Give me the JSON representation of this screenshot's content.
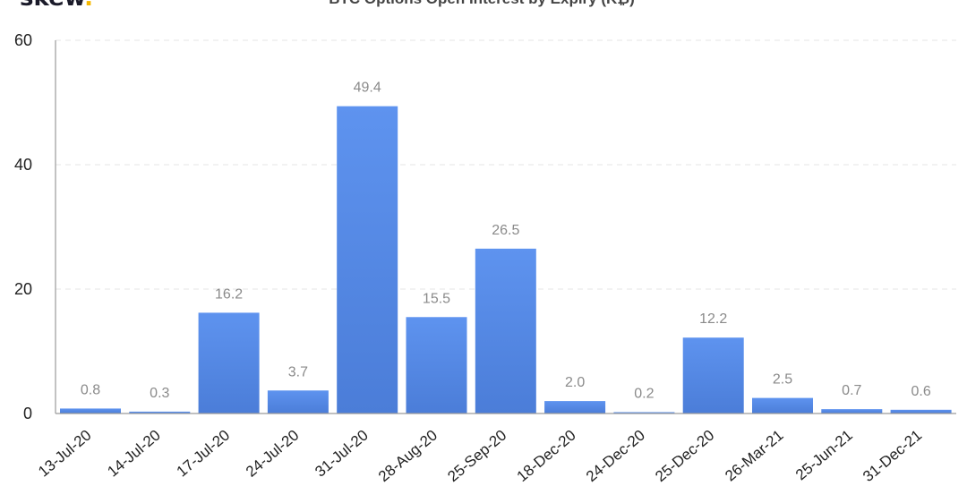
{
  "logo": {
    "text": "skew",
    "dot": "."
  },
  "chart_data": {
    "type": "bar",
    "title": "BTC Options Open Interest by Expiry (K₿)",
    "xlabel": "",
    "ylabel": "",
    "ylim": [
      0,
      60
    ],
    "yticks": [
      0,
      20,
      40,
      60
    ],
    "grid": true,
    "bar_color": "#5b8fea",
    "bar_color_dark": "#4d7fd9",
    "categories": [
      "13-Jul-20",
      "14-Jul-20",
      "17-Jul-20",
      "24-Jul-20",
      "31-Jul-20",
      "28-Aug-20",
      "25-Sep-20",
      "18-Dec-20",
      "24-Dec-20",
      "25-Dec-20",
      "26-Mar-21",
      "25-Jun-21",
      "31-Dec-21"
    ],
    "values": [
      0.8,
      0.3,
      16.2,
      3.7,
      49.4,
      15.5,
      26.5,
      2.0,
      0.2,
      12.2,
      2.5,
      0.7,
      0.6
    ],
    "value_labels": [
      "0.8",
      "0.3",
      "16.2",
      "3.7",
      "49.4",
      "15.5",
      "26.5",
      "2.0",
      "0.2",
      "12.2",
      "2.5",
      "0.7",
      "0.6"
    ]
  }
}
